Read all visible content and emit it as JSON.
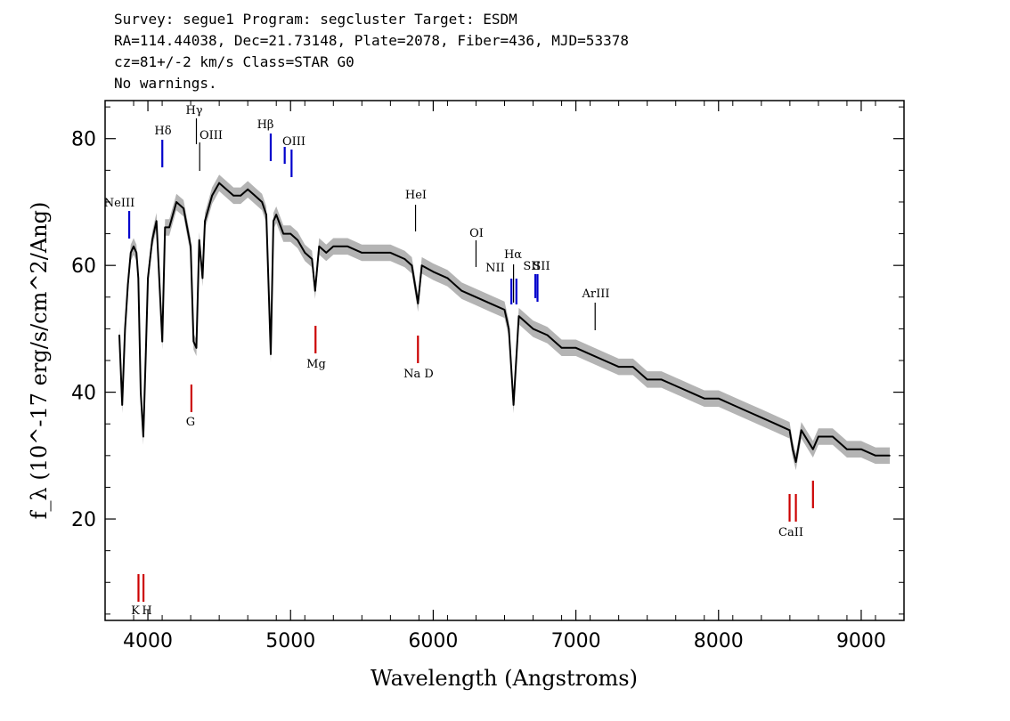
{
  "header": {
    "line1": "Survey: segue1 Program: segcluster Target: ESDM",
    "line2": "RA=114.44038, Dec=21.73148, Plate=2078, Fiber=436, MJD=53378",
    "line3": "cz=81+/-2 km/s Class=STAR G0",
    "line4": "No warnings."
  },
  "chart_data": {
    "type": "line",
    "xlabel": "Wavelength (Angstroms)",
    "ylabel": "f_λ (10^-17 erg/s/cm^2/Ang)",
    "xlim": [
      3700,
      9300
    ],
    "ylim": [
      4,
      86
    ],
    "x_ticks": [
      4000,
      5000,
      6000,
      7000,
      8000,
      9000
    ],
    "y_ticks": [
      20,
      40,
      60,
      80
    ],
    "colors": {
      "spectrum": "#000000",
      "error": "#b4b4b4",
      "emission": "#0000cc",
      "absorption": "#cc0000",
      "thin": "#000000"
    },
    "series": [
      {
        "x": [
          3800,
          3820,
          3840,
          3860,
          3880,
          3900,
          3920,
          3933,
          3950,
          3968,
          3985,
          4000,
          4030,
          4060,
          4101,
          4120,
          4150,
          4200,
          4250,
          4300,
          4320,
          4340,
          4360,
          4383,
          4400,
          4450,
          4500,
          4550,
          4600,
          4650,
          4700,
          4750,
          4800,
          4830,
          4861,
          4880,
          4900,
          4950,
          5000,
          5050,
          5100,
          5150,
          5172,
          5200,
          5250,
          5300,
          5400,
          5500,
          5600,
          5700,
          5800,
          5850,
          5893,
          5920,
          6000,
          6100,
          6200,
          6300,
          6400,
          6500,
          6530,
          6563,
          6600,
          6700,
          6800,
          6900,
          7000,
          7100,
          7200,
          7300,
          7400,
          7500,
          7600,
          7700,
          7800,
          7900,
          8000,
          8100,
          8200,
          8300,
          8400,
          8498,
          8520,
          8542,
          8580,
          8662,
          8700,
          8800,
          8900,
          9000,
          9100,
          9200
        ],
        "values": [
          49,
          38,
          50,
          57,
          62,
          63,
          62,
          58,
          40,
          33,
          46,
          58,
          64,
          67,
          48,
          66,
          66,
          70,
          69,
          63,
          48,
          47,
          64,
          58,
          67,
          71,
          73,
          72,
          71,
          71,
          72,
          71,
          70,
          68,
          46,
          67,
          68,
          65,
          65,
          64,
          62,
          61,
          56,
          63,
          62,
          63,
          63,
          62,
          62,
          62,
          61,
          60,
          54,
          60,
          59,
          58,
          56,
          55,
          54,
          53,
          50,
          38,
          52,
          50,
          49,
          47,
          47,
          46,
          45,
          44,
          44,
          42,
          42,
          41,
          40,
          39,
          39,
          38,
          37,
          36,
          35,
          34,
          31,
          29,
          34,
          31,
          33,
          33,
          31,
          31,
          30,
          30
        ]
      }
    ],
    "lines": [
      {
        "label": "NeIII",
        "x": 3869,
        "kind": "emission"
      },
      {
        "label": "Hδ",
        "x": 4101,
        "kind": "emission"
      },
      {
        "label": "Hγ",
        "x": 4340,
        "kind": "thin"
      },
      {
        "label": "OIII",
        "x": 4363,
        "kind": "thin"
      },
      {
        "label": "Hβ",
        "x": 4861,
        "kind": "emission"
      },
      {
        "label": "OIII",
        "x": 4959,
        "kind": "emission"
      },
      {
        "label": "OIII",
        "x": 5007,
        "kind": "emission"
      },
      {
        "label": "HeI",
        "x": 5876,
        "kind": "thin"
      },
      {
        "label": "OI",
        "x": 6300,
        "kind": "thin"
      },
      {
        "label": "NII",
        "x": 6548,
        "kind": "emission"
      },
      {
        "label": "Hα",
        "x": 6563,
        "kind": "thin"
      },
      {
        "label": "NII",
        "x": 6583,
        "kind": "emission"
      },
      {
        "label": "SII",
        "x": 6716,
        "kind": "emission"
      },
      {
        "label": "SII",
        "x": 6731,
        "kind": "emission"
      },
      {
        "label": "ArIII",
        "x": 7135,
        "kind": "thin"
      },
      {
        "label": "K",
        "x": 3934,
        "kind": "absorption"
      },
      {
        "label": "H",
        "x": 3969,
        "kind": "absorption"
      },
      {
        "label": "G",
        "x": 4305,
        "kind": "absorption"
      },
      {
        "label": "Mg",
        "x": 5175,
        "kind": "absorption"
      },
      {
        "label": "Na D",
        "x": 5893,
        "kind": "absorption"
      },
      {
        "label": "CaII",
        "x": 8498,
        "kind": "absorption"
      },
      {
        "label": "CaII",
        "x": 8542,
        "kind": "absorption"
      },
      {
        "label": "CaII",
        "x": 8662,
        "kind": "absorption"
      }
    ]
  }
}
